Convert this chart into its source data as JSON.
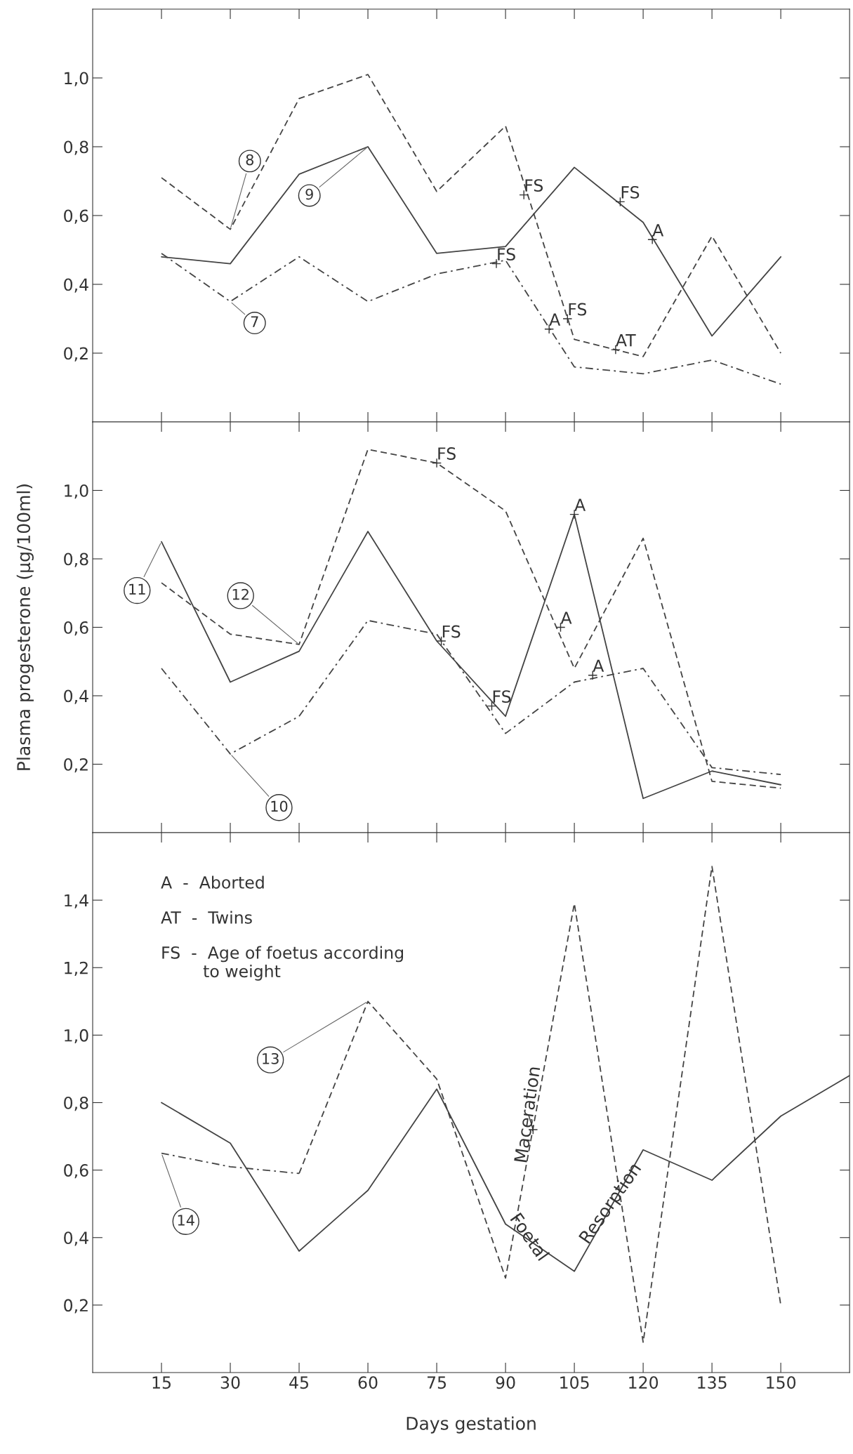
{
  "chart_data": [
    {
      "type": "line",
      "x": [
        15,
        30,
        45,
        60,
        75,
        90,
        105,
        120,
        135,
        150
      ],
      "xlim": [
        0,
        165
      ],
      "ylim": [
        0,
        1.2
      ],
      "yticks": [
        {
          "value": 0.2,
          "label": "0,2"
        },
        {
          "value": 0.4,
          "label": "0,4"
        },
        {
          "value": 0.6,
          "label": "0,6"
        },
        {
          "value": 0.8,
          "label": "0,8"
        },
        {
          "value": 1.0,
          "label": "1,0"
        }
      ],
      "xticks": [
        {
          "value": 15,
          "label": null
        },
        {
          "value": 30,
          "label": null
        },
        {
          "value": 45,
          "label": null
        },
        {
          "value": 60,
          "label": null
        },
        {
          "value": 75,
          "label": null
        },
        {
          "value": 90,
          "label": null
        },
        {
          "value": 105,
          "label": null
        },
        {
          "value": 120,
          "label": null
        },
        {
          "value": 135,
          "label": null
        },
        {
          "value": 150,
          "label": null
        }
      ],
      "tick_labels": "y",
      "series": [
        {
          "name": "8",
          "color": "#444444",
          "line_style": "dashed",
          "values": [
            0.71,
            0.56,
            0.94,
            1.01,
            0.67,
            0.86,
            0.24,
            0.19,
            0.54,
            0.2
          ]
        },
        {
          "name": "9",
          "color": "#444444",
          "line_style": "solid",
          "values": [
            0.48,
            0.46,
            0.72,
            0.8,
            0.49,
            0.51,
            0.74,
            0.58,
            0.25,
            0.48
          ]
        },
        {
          "name": "7",
          "color": "#444444",
          "line_style": "dashdot",
          "values": [
            0.49,
            0.35,
            0.48,
            0.35,
            0.43,
            0.47,
            0.16,
            0.14,
            0.18,
            0.11
          ]
        }
      ],
      "annotations": [
        {
          "text": "FS",
          "x": 94,
          "y": 0.66
        },
        {
          "text": "FS",
          "x": 115,
          "y": 0.64
        },
        {
          "text": "A",
          "x": 122,
          "y": 0.53
        },
        {
          "text": "FS",
          "x": 88,
          "y": 0.46
        },
        {
          "text": "A",
          "x": 99.5,
          "y": 0.27
        },
        {
          "text": "FS",
          "x": 103.5,
          "y": 0.3
        },
        {
          "text": "AT",
          "x": 114,
          "y": 0.21
        }
      ]
    },
    {
      "type": "line",
      "x": [
        15,
        30,
        45,
        60,
        75,
        90,
        105,
        120,
        135,
        150
      ],
      "xlim": [
        0,
        165
      ],
      "ylim": [
        0,
        1.2
      ],
      "ylabel": "Plasma progesterone (µg/100ml)",
      "yticks": [
        {
          "value": 0.2,
          "label": "0,2"
        },
        {
          "value": 0.4,
          "label": "0,4"
        },
        {
          "value": 0.6,
          "label": "0,6"
        },
        {
          "value": 0.8,
          "label": "0,8"
        },
        {
          "value": 1.0,
          "label": "1,0"
        }
      ],
      "xticks": [
        {
          "value": 15,
          "label": null
        },
        {
          "value": 30,
          "label": null
        },
        {
          "value": 45,
          "label": null
        },
        {
          "value": 60,
          "label": null
        },
        {
          "value": 75,
          "label": null
        },
        {
          "value": 90,
          "label": null
        },
        {
          "value": 105,
          "label": null
        },
        {
          "value": 120,
          "label": null
        },
        {
          "value": 135,
          "label": null
        },
        {
          "value": 150,
          "label": null
        }
      ],
      "tick_labels": "y",
      "series": [
        {
          "name": "12",
          "color": "#444444",
          "line_style": "dashed",
          "values": [
            0.73,
            0.58,
            0.55,
            1.12,
            1.08,
            0.94,
            0.48,
            0.86,
            0.15,
            0.13
          ]
        },
        {
          "name": "11",
          "color": "#444444",
          "line_style": "solid",
          "values": [
            0.85,
            0.44,
            0.53,
            0.88,
            0.56,
            0.34,
            0.93,
            0.1,
            0.18,
            0.14
          ]
        },
        {
          "name": "10",
          "color": "#444444",
          "line_style": "dashdot",
          "values": [
            0.48,
            0.23,
            0.34,
            0.62,
            0.58,
            0.29,
            0.44,
            0.48,
            0.19,
            0.17
          ]
        }
      ],
      "annotations": [
        {
          "text": "FS",
          "x": 75,
          "y": 1.08
        },
        {
          "text": "A",
          "x": 105,
          "y": 0.93
        },
        {
          "text": "FS",
          "x": 76,
          "y": 0.56
        },
        {
          "text": "FS",
          "x": 87,
          "y": 0.37
        },
        {
          "text": "A",
          "x": 102,
          "y": 0.6
        },
        {
          "text": "A",
          "x": 109,
          "y": 0.46
        }
      ]
    },
    {
      "type": "line",
      "x": [
        15,
        30,
        45,
        60,
        75,
        90,
        105,
        120,
        135,
        150,
        165
      ],
      "xlim": [
        0,
        165
      ],
      "ylim": [
        0,
        1.6
      ],
      "xlabel": "Days gestation",
      "yticks": [
        {
          "value": 0.2,
          "label": "0,2"
        },
        {
          "value": 0.4,
          "label": "0,4"
        },
        {
          "value": 0.6,
          "label": "0,6"
        },
        {
          "value": 0.8,
          "label": "0,8"
        },
        {
          "value": 1.0,
          "label": "1,0"
        },
        {
          "value": 1.2,
          "label": "1,2"
        },
        {
          "value": 1.4,
          "label": "1,4"
        }
      ],
      "xticks": [
        15,
        30,
        45,
        60,
        75,
        90,
        105,
        120,
        135,
        150
      ],
      "series": [
        {
          "color": "#444444",
          "line_style": "solid",
          "values": [
            0.8,
            0.68,
            0.36,
            0.54,
            0.84,
            0.44,
            0.3,
            0.66,
            0.57,
            0.76,
            0.88
          ]
        },
        {
          "name": "13",
          "color": "#444444",
          "line_style": "dashed",
          "values": [
            null,
            null,
            0.59,
            1.1,
            0.87,
            0.28,
            1.39,
            0.09,
            1.5,
            0.2,
            null
          ]
        },
        {
          "name": "14",
          "color": "#444444",
          "line_style": "dashdot",
          "values": [
            0.65,
            0.61,
            0.59,
            null,
            null,
            null,
            null,
            null,
            null,
            null,
            null
          ]
        }
      ],
      "annotations": [
        "A  -  Aborted",
        "AT  -  Twins",
        "FS  -  Age of foetus according\n        to weight",
        {
          "text": "Maceration",
          "x": 96,
          "y": 0.72
        },
        {
          "text": "Foetal",
          "x": 95,
          "y": 0.4
        },
        {
          "text": "Resorption",
          "x": 113,
          "y": 0.5
        }
      ]
    }
  ]
}
